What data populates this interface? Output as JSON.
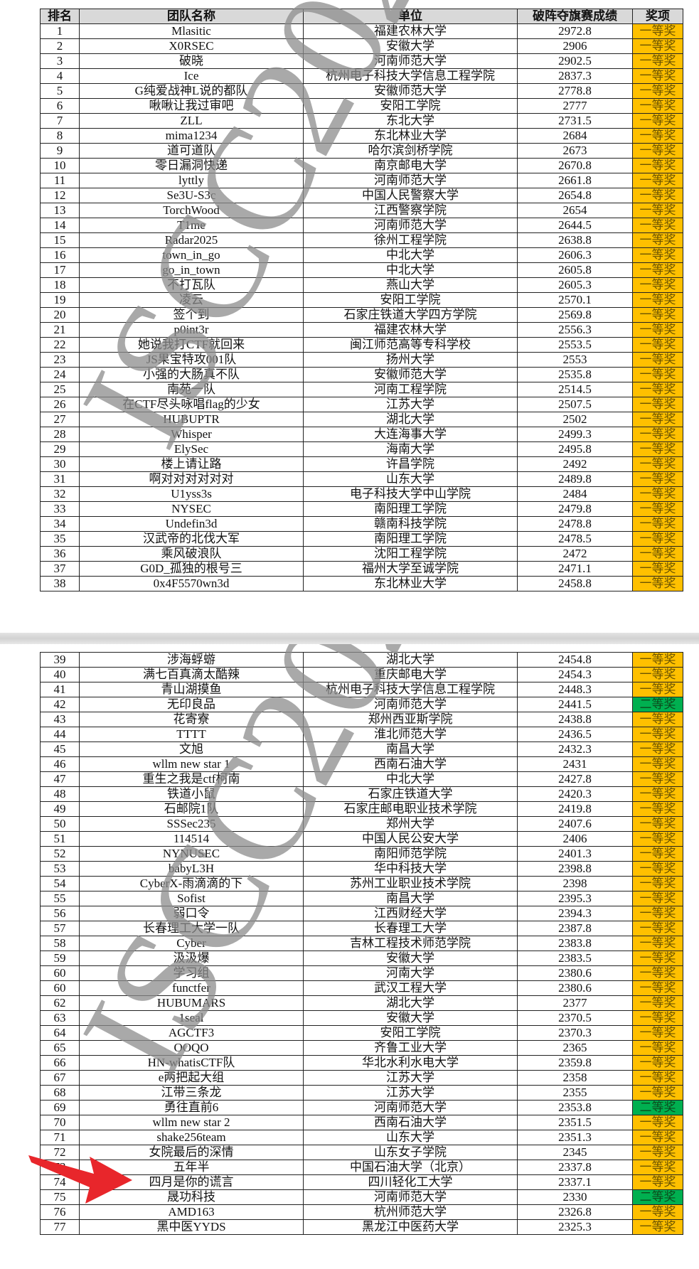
{
  "headers": {
    "rank": "排名",
    "team": "团队名称",
    "unit": "单位",
    "score": "破阵夺旗赛成绩",
    "award": "奖项"
  },
  "watermark": "ISCC2025",
  "colors": {
    "first_prize": "#FFC000",
    "second_prize": "#00B050",
    "header_bg": "#D9D9D9",
    "watermark": "#9a9a9a",
    "arrow": "#E8262B"
  },
  "highlight": {
    "icon": "red-arrow-icon",
    "rank": "72"
  },
  "page1_rows": [
    [
      "1",
      "Mlasitic",
      "福建农林大学",
      "2972.8",
      "一等奖"
    ],
    [
      "2",
      "X0RSEC",
      "安徽大学",
      "2906",
      "一等奖"
    ],
    [
      "3",
      "破晓",
      "河南师范大学",
      "2902.5",
      "一等奖"
    ],
    [
      "4",
      "Ice",
      "杭州电子科技大学信息工程学院",
      "2837.3",
      "一等奖"
    ],
    [
      "5",
      "G纯爱战神L说的都队",
      "安徽师范大学",
      "2778.8",
      "一等奖"
    ],
    [
      "6",
      "啾啾让我过审吧",
      "安阳工学院",
      "2777",
      "一等奖"
    ],
    [
      "7",
      "ZLL",
      "东北大学",
      "2731.5",
      "一等奖"
    ],
    [
      "8",
      "mima1234",
      "东北林业大学",
      "2684",
      "一等奖"
    ],
    [
      "9",
      "道可道队",
      "哈尔滨剑桥学院",
      "2673",
      "一等奖"
    ],
    [
      "10",
      "零日漏洞快递",
      "南京邮电大学",
      "2670.8",
      "一等奖"
    ],
    [
      "11",
      "lyttly",
      "河南师范大学",
      "2661.8",
      "一等奖"
    ],
    [
      "12",
      "Se3U-S3c",
      "中国人民警察大学",
      "2654.8",
      "一等奖"
    ],
    [
      "13",
      "TorchWood",
      "江西警察学院",
      "2654",
      "一等奖"
    ],
    [
      "14",
      "T1me",
      "河南师范大学",
      "2644.5",
      "一等奖"
    ],
    [
      "15",
      "Radar2025",
      "徐州工程学院",
      "2638.8",
      "一等奖"
    ],
    [
      "16",
      "town_in_go",
      "中北大学",
      "2606.3",
      "一等奖"
    ],
    [
      "17",
      "go_in_town",
      "中北大学",
      "2605.8",
      "一等奖"
    ],
    [
      "18",
      "不打瓦队",
      "燕山大学",
      "2605.3",
      "一等奖"
    ],
    [
      "19",
      "凌云",
      "安阳工学院",
      "2570.1",
      "一等奖"
    ],
    [
      "20",
      "签个到",
      "石家庄铁道大学四方学院",
      "2569.8",
      "一等奖"
    ],
    [
      "21",
      "p0int3r",
      "福建农林大学",
      "2556.3",
      "一等奖"
    ],
    [
      "22",
      "她说我打CTF就回来",
      "闽江师范高等专科学校",
      "2553.5",
      "一等奖"
    ],
    [
      "23",
      "JS果宝特攻001队",
      "扬州大学",
      "2553",
      "一等奖"
    ],
    [
      "24",
      "小强的大肠真不队",
      "安徽师范大学",
      "2535.8",
      "一等奖"
    ],
    [
      "25",
      "南苑一队",
      "河南工程学院",
      "2514.5",
      "一等奖"
    ],
    [
      "26",
      "在CTF尽头咏唱flag的少女",
      "江苏大学",
      "2507.5",
      "一等奖"
    ],
    [
      "27",
      "HUBUPTR",
      "湖北大学",
      "2502",
      "一等奖"
    ],
    [
      "28",
      "Whisper",
      "大连海事大学",
      "2499.3",
      "一等奖"
    ],
    [
      "29",
      "ElySec",
      "海南大学",
      "2495.8",
      "一等奖"
    ],
    [
      "30",
      "楼上请让路",
      "许昌学院",
      "2492",
      "一等奖"
    ],
    [
      "31",
      "啊对对对对对对",
      "山东大学",
      "2489.8",
      "一等奖"
    ],
    [
      "32",
      "U1yss3s",
      "电子科技大学中山学院",
      "2484",
      "一等奖"
    ],
    [
      "33",
      "NYSEC",
      "南阳理工学院",
      "2479.8",
      "一等奖"
    ],
    [
      "34",
      "Undefin3d",
      "赣南科技学院",
      "2478.8",
      "一等奖"
    ],
    [
      "35",
      "汉武帝的北伐大军",
      "南阳理工学院",
      "2478.5",
      "一等奖"
    ],
    [
      "36",
      "乘风破浪队",
      "沈阳工程学院",
      "2472",
      "一等奖"
    ],
    [
      "37",
      "G0D_孤独的根号三",
      "福州大学至诚学院",
      "2471.1",
      "一等奖"
    ],
    [
      "38",
      "0x4F5570wn3d",
      "东北林业大学",
      "2458.8",
      "一等奖"
    ]
  ],
  "page2_rows": [
    [
      "39",
      "涉海蜉蝣",
      "湖北大学",
      "2454.8",
      "一等奖"
    ],
    [
      "40",
      "满七百真滴太酷辣",
      "重庆邮电大学",
      "2454.3",
      "一等奖"
    ],
    [
      "41",
      "青山湖摸鱼",
      "杭州电子科技大学信息工程学院",
      "2448.3",
      "一等奖"
    ],
    [
      "42",
      "无印良品",
      "河南师范大学",
      "2441.5",
      "二等奖"
    ],
    [
      "43",
      "花寄寮",
      "郑州西亚斯学院",
      "2438.8",
      "一等奖"
    ],
    [
      "44",
      "TTTT",
      "淮北师范大学",
      "2436.5",
      "一等奖"
    ],
    [
      "45",
      "文旭",
      "南昌大学",
      "2432.3",
      "一等奖"
    ],
    [
      "46",
      "wllm new star 1",
      "西南石油大学",
      "2431",
      "一等奖"
    ],
    [
      "47",
      "重生之我是ctf柯南",
      "中北大学",
      "2427.8",
      "一等奖"
    ],
    [
      "48",
      "铁道小鼠",
      "石家庄铁道大学",
      "2420.3",
      "一等奖"
    ],
    [
      "49",
      "石邮院1队",
      "石家庄邮电职业技术学院",
      "2419.8",
      "一等奖"
    ],
    [
      "50",
      "SSSec235",
      "郑州大学",
      "2407.6",
      "一等奖"
    ],
    [
      "51",
      "114514",
      "中国人民公安大学",
      "2406",
      "一等奖"
    ],
    [
      "52",
      "NYNUSEC",
      "南阳师范学院",
      "2401.3",
      "一等奖"
    ],
    [
      "53",
      "babyL3H",
      "华中科技大学",
      "2398.8",
      "一等奖"
    ],
    [
      "54",
      "CyberX-雨滴滴的下",
      "苏州工业职业技术学院",
      "2398",
      "一等奖"
    ],
    [
      "55",
      "Sofist",
      "南昌大学",
      "2395.3",
      "一等奖"
    ],
    [
      "56",
      "弱口令",
      "江西财经大学",
      "2394.3",
      "一等奖"
    ],
    [
      "57",
      "长春理工大学一队",
      "长春理工大学",
      "2387.8",
      "一等奖"
    ],
    [
      "58",
      "Cyber",
      "吉林工程技术师范学院",
      "2383.8",
      "一等奖"
    ],
    [
      "59",
      "汲汲爆",
      "安徽大学",
      "2383.5",
      "一等奖"
    ],
    [
      "60",
      "学习组",
      "河南大学",
      "2380.6",
      "一等奖"
    ],
    [
      "60",
      "functfer",
      "武汉工程大学",
      "2380.6",
      "一等奖"
    ],
    [
      "62",
      "HUBUMARS",
      "湖北大学",
      "2377",
      "一等奖"
    ],
    [
      "63",
      "1seal",
      "安徽大学",
      "2370.5",
      "一等奖"
    ],
    [
      "64",
      "AGCTF3",
      "安阳工学院",
      "2370.3",
      "一等奖"
    ],
    [
      "65",
      "OOQO",
      "齐鲁工业大学",
      "2365",
      "一等奖"
    ],
    [
      "66",
      "HN-whatisCTF队",
      "华北水利水电大学",
      "2359.8",
      "一等奖"
    ],
    [
      "67",
      "e两把起大组",
      "江苏大学",
      "2358",
      "一等奖"
    ],
    [
      "68",
      "江带三条龙",
      "江苏大学",
      "2355",
      "一等奖"
    ],
    [
      "69",
      "勇往直前6",
      "河南师范大学",
      "2353.8",
      "二等奖"
    ],
    [
      "70",
      "wllm new star 2",
      "西南石油大学",
      "2351.5",
      "一等奖"
    ],
    [
      "71",
      "shake256team",
      "山东大学",
      "2351.3",
      "一等奖"
    ],
    [
      "72",
      "女院最后的深情",
      "山东女子学院",
      "2345",
      "一等奖"
    ],
    [
      "73",
      "五年半",
      "中国石油大学（北京）",
      "2337.8",
      "一等奖"
    ],
    [
      "74",
      "四月是你的谎言",
      "四川轻化工大学",
      "2337.1",
      "一等奖"
    ],
    [
      "75",
      "晟功科技",
      "河南师范大学",
      "2330",
      "二等奖"
    ],
    [
      "76",
      "AMD163",
      "杭州师范大学",
      "2326.8",
      "一等奖"
    ],
    [
      "77",
      "黑中医YYDS",
      "黑龙江中医药大学",
      "2325.3",
      "一等奖"
    ]
  ]
}
